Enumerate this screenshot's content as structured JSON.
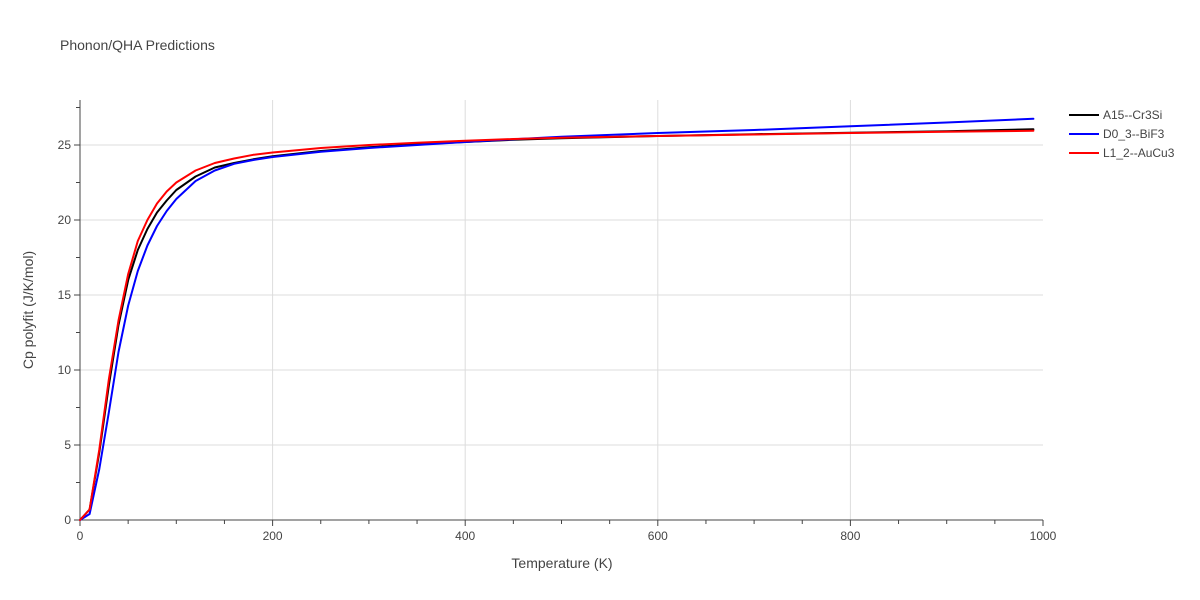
{
  "chart_data": {
    "type": "line",
    "title": "Phonon/QHA Predictions",
    "xlabel": "Temperature (K)",
    "ylabel": "Cp polyfit (J/K/mol)",
    "xlim": [
      0,
      1000
    ],
    "ylim": [
      0,
      28
    ],
    "x_ticks": [
      0,
      200,
      400,
      600,
      800,
      1000
    ],
    "y_ticks": [
      0,
      5,
      10,
      15,
      20,
      25
    ],
    "grid": true,
    "legend_position": "top-right",
    "series": [
      {
        "name": "A15--Cr3Si",
        "color": "#000000",
        "x": [
          0,
          10,
          20,
          30,
          40,
          50,
          60,
          70,
          80,
          90,
          100,
          120,
          140,
          160,
          180,
          200,
          250,
          300,
          350,
          400,
          450,
          500,
          600,
          700,
          800,
          900,
          990
        ],
        "y": [
          0,
          0.7,
          4.5,
          9.0,
          13.0,
          16.0,
          18.0,
          19.4,
          20.5,
          21.3,
          22.0,
          22.9,
          23.5,
          23.8,
          24.05,
          24.25,
          24.6,
          24.85,
          25.05,
          25.2,
          25.35,
          25.45,
          25.6,
          25.72,
          25.82,
          25.92,
          26.05
        ]
      },
      {
        "name": "D0_3--BiF3",
        "color": "#0000ff",
        "x": [
          0,
          10,
          20,
          30,
          40,
          50,
          60,
          70,
          80,
          90,
          100,
          120,
          140,
          160,
          180,
          200,
          250,
          300,
          350,
          400,
          450,
          500,
          600,
          700,
          800,
          900,
          990
        ],
        "y": [
          0,
          0.4,
          3.4,
          7.2,
          11.2,
          14.3,
          16.6,
          18.3,
          19.6,
          20.6,
          21.4,
          22.6,
          23.3,
          23.75,
          24.0,
          24.2,
          24.55,
          24.8,
          25.0,
          25.2,
          25.38,
          25.55,
          25.8,
          26.0,
          26.25,
          26.5,
          26.75
        ]
      },
      {
        "name": "L1_2--AuCu3",
        "color": "#ff0000",
        "x": [
          0,
          10,
          20,
          30,
          40,
          50,
          60,
          70,
          80,
          90,
          100,
          120,
          140,
          160,
          180,
          200,
          250,
          300,
          350,
          400,
          450,
          500,
          600,
          700,
          800,
          900,
          990
        ],
        "y": [
          0,
          0.7,
          4.7,
          9.4,
          13.3,
          16.4,
          18.6,
          20.0,
          21.1,
          21.9,
          22.5,
          23.3,
          23.8,
          24.1,
          24.35,
          24.5,
          24.8,
          25.0,
          25.15,
          25.28,
          25.4,
          25.48,
          25.6,
          25.7,
          25.8,
          25.88,
          25.95
        ]
      }
    ]
  }
}
